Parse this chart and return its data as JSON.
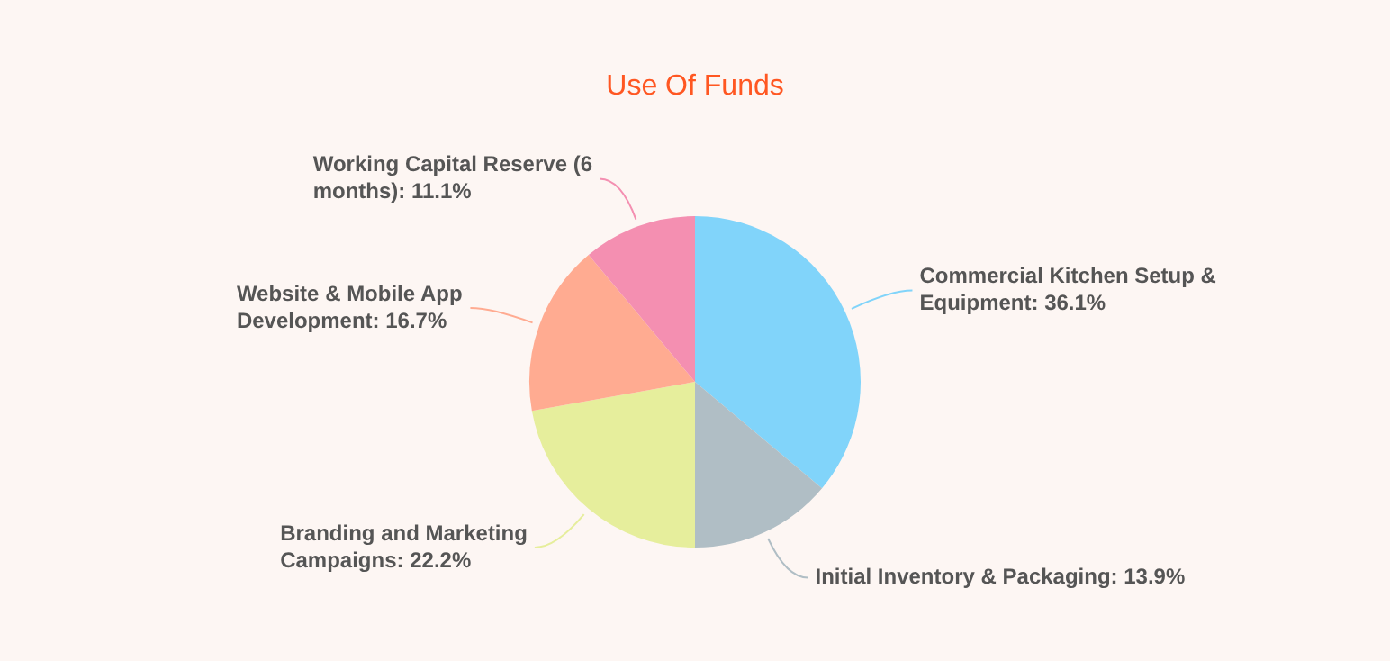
{
  "chart_data": {
    "type": "pie",
    "title": "Use Of Funds",
    "categories": [
      "Commercial Kitchen Setup & Equipment",
      "Initial Inventory & Packaging",
      "Branding and Marketing Campaigns",
      "Website & Mobile App Development",
      "Working Capital Reserve (6 months)"
    ],
    "values": [
      36.1,
      13.9,
      22.2,
      16.7,
      11.1
    ],
    "value_labels": [
      "36.1%",
      "13.9%",
      "22.2%",
      "16.7%",
      "11.1%"
    ],
    "colors": [
      "#81d4fa",
      "#b0bec5",
      "#e6ee9c",
      "#ffab91",
      "#f48fb1"
    ],
    "legend": false
  }
}
